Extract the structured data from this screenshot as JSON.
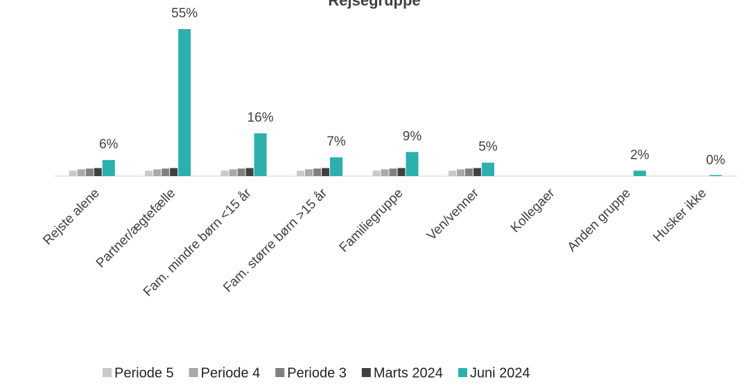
{
  "chart_data": {
    "type": "bar",
    "title": "Rejsegruppe",
    "categories": [
      "Rejste alene",
      "Partner/ægtefælle",
      "Fam. mindre børn <15 år",
      "Fam. større børn >15 år",
      "Familiegruppe",
      "Ven/venner",
      "Kollegaer",
      "Anden gruppe",
      "Husker ikke"
    ],
    "series": [
      {
        "name": "Periode 5",
        "color": "#c9c9c9",
        "values": [
          2,
          2,
          2,
          2,
          2,
          2,
          null,
          null,
          null
        ]
      },
      {
        "name": "Periode 4",
        "color": "#a9a9a9",
        "values": [
          2.5,
          2.5,
          2.5,
          2.5,
          2.5,
          2.5,
          null,
          null,
          null
        ]
      },
      {
        "name": "Periode 3",
        "color": "#808080",
        "values": [
          2.8,
          2.8,
          2.8,
          2.8,
          2.8,
          2.8,
          null,
          null,
          null
        ]
      },
      {
        "name": "Marts 2024",
        "color": "#404040",
        "values": [
          3,
          3,
          3,
          3,
          3,
          3,
          null,
          null,
          null
        ]
      },
      {
        "name": "Juni 2024",
        "color": "#2ab0ad",
        "values": [
          6,
          55,
          16,
          7,
          9,
          5,
          null,
          2,
          0
        ],
        "value_labels": [
          "6%",
          "55%",
          "16%",
          "7%",
          "9%",
          "5%",
          null,
          "2%",
          "0%"
        ]
      }
    ],
    "legend": "bottom"
  }
}
